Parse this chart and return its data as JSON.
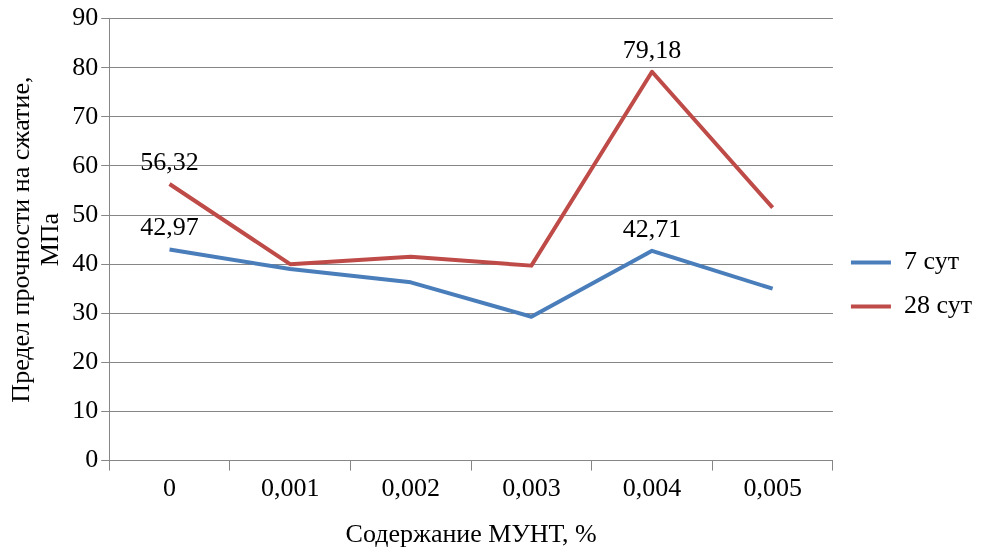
{
  "chart_data": {
    "type": "line",
    "xlabel": "Содержание МУНТ, %",
    "ylabel": "Предел прочности на сжатие, МПа",
    "categories": [
      "0",
      "0,001",
      "0,002",
      "0,003",
      "0,004",
      "0,005"
    ],
    "series": [
      {
        "name": "7 сут",
        "color": "#4a7ebb",
        "values": [
          42.97,
          39,
          36.3,
          29.3,
          42.71,
          35
        ],
        "value_labels": [
          "42,97",
          null,
          null,
          null,
          "42,71",
          null
        ]
      },
      {
        "name": "28 сут",
        "color": "#be4b48",
        "values": [
          56.32,
          40,
          41.5,
          39.7,
          79.18,
          51.5
        ],
        "value_labels": [
          "56,32",
          null,
          null,
          null,
          "79,18",
          null
        ]
      }
    ],
    "ylim": [
      0,
      90
    ],
    "yticks": [
      0,
      10,
      20,
      30,
      40,
      50,
      60,
      70,
      80,
      90
    ],
    "grid": "y",
    "legend": "right",
    "marker": "none",
    "line_style": "solid"
  }
}
